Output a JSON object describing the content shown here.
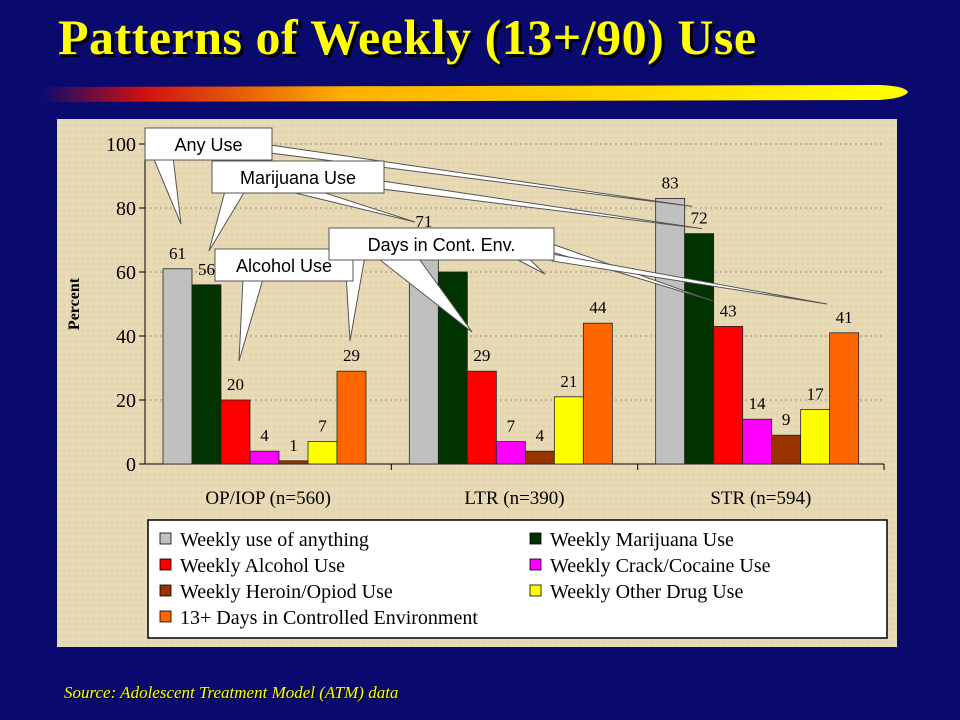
{
  "slide": {
    "title": "Patterns of Weekly (13+/90) Use",
    "source": "Source:  Adolescent Treatment Model (ATM) data",
    "colors": {
      "background": "#0a0a6e",
      "title": "#ffff00",
      "plot_background": "#e7d9b4"
    }
  },
  "chart_data": {
    "type": "bar",
    "ylabel": "Percent",
    "ylim": [
      0,
      100
    ],
    "yticks": [
      "0",
      "20",
      "40",
      "60",
      "80",
      "100"
    ],
    "grid": true,
    "legend_position": "bottom",
    "categories": [
      "OP/IOP (n=560)",
      "LTR (n=390)",
      "STR (n=594)"
    ],
    "series": [
      {
        "name": "Weekly use of anything",
        "color": "#c0c0c0",
        "values": [
          61,
          71,
          83
        ],
        "labels": [
          "61",
          "71",
          "83"
        ]
      },
      {
        "name": "Weekly Marijuana Use",
        "color": "#003300",
        "values": [
          56,
          60,
          72
        ],
        "labels": [
          "56",
          "",
          "72"
        ]
      },
      {
        "name": "Weekly Alcohol Use",
        "color": "#ff0000",
        "values": [
          20,
          29,
          43
        ],
        "labels": [
          "20",
          "29",
          "43"
        ]
      },
      {
        "name": "Weekly Crack/Cocaine Use",
        "color": "#ff00ff",
        "values": [
          4,
          7,
          14
        ],
        "labels": [
          "4",
          "7",
          "14"
        ]
      },
      {
        "name": "Weekly Heroin/Opiod Use",
        "color": "#993300",
        "values": [
          1,
          4,
          9
        ],
        "labels": [
          "1",
          "4",
          "9"
        ]
      },
      {
        "name": "Weekly Other Drug Use",
        "color": "#ffff00",
        "values": [
          7,
          21,
          17
        ],
        "labels": [
          "7",
          "21",
          "17"
        ]
      },
      {
        "name": "13+ Days in Controlled Environment",
        "color": "#ff6600",
        "values": [
          29,
          44,
          41
        ],
        "labels": [
          "29",
          "44",
          "41"
        ]
      }
    ],
    "callouts": [
      "Any Use",
      "Marijuana Use",
      "Alcohol Use",
      "Days in Cont. Env."
    ]
  }
}
